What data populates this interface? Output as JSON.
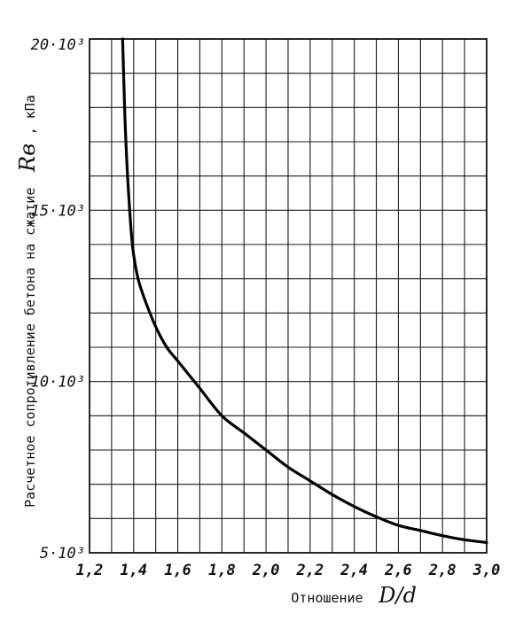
{
  "chart_data": {
    "type": "line",
    "title": "",
    "xlabel": "Отношение D/d",
    "xlabel_text": "Отношение",
    "xlabel_symbol": "D/d",
    "ylabel": "Расчетное сопротивление бетона на сжатие Rв, кПа",
    "ylabel_text": "Расчетное сопротивление бетона на сжатие",
    "ylabel_symbol": "Rв",
    "ylabel_unit": ", кПа",
    "xlim": [
      1.2,
      3.0
    ],
    "ylim": [
      5000,
      20000
    ],
    "grid": true,
    "x_ticks": [
      1.2,
      1.4,
      1.6,
      1.8,
      2.0,
      2.2,
      2.4,
      2.6,
      2.8,
      3.0
    ],
    "x_tick_labels": [
      "1,2",
      "1,4",
      "1,6",
      "1,8",
      "2,0",
      "2,2",
      "2,4",
      "2,6",
      "2,8",
      "3,0"
    ],
    "y_ticks": [
      5000,
      10000,
      15000,
      20000
    ],
    "y_tick_labels": [
      "5·10³",
      "10·10³",
      "15·10³",
      "20·10³"
    ],
    "series": [
      {
        "x": [
          1.35,
          1.36,
          1.37,
          1.38,
          1.39,
          1.4,
          1.42,
          1.45,
          1.5,
          1.55,
          1.6,
          1.7,
          1.8,
          1.9,
          2.0,
          2.1,
          2.2,
          2.3,
          2.4,
          2.5,
          2.6,
          2.7,
          2.8,
          2.9,
          3.0
        ],
        "y": [
          20000,
          17800,
          16300,
          15200,
          14300,
          13700,
          13000,
          12400,
          11600,
          11000,
          10600,
          9800,
          9000,
          8500,
          8000,
          7500,
          7100,
          6700,
          6350,
          6050,
          5800,
          5650,
          5500,
          5380,
          5300
        ]
      }
    ]
  }
}
